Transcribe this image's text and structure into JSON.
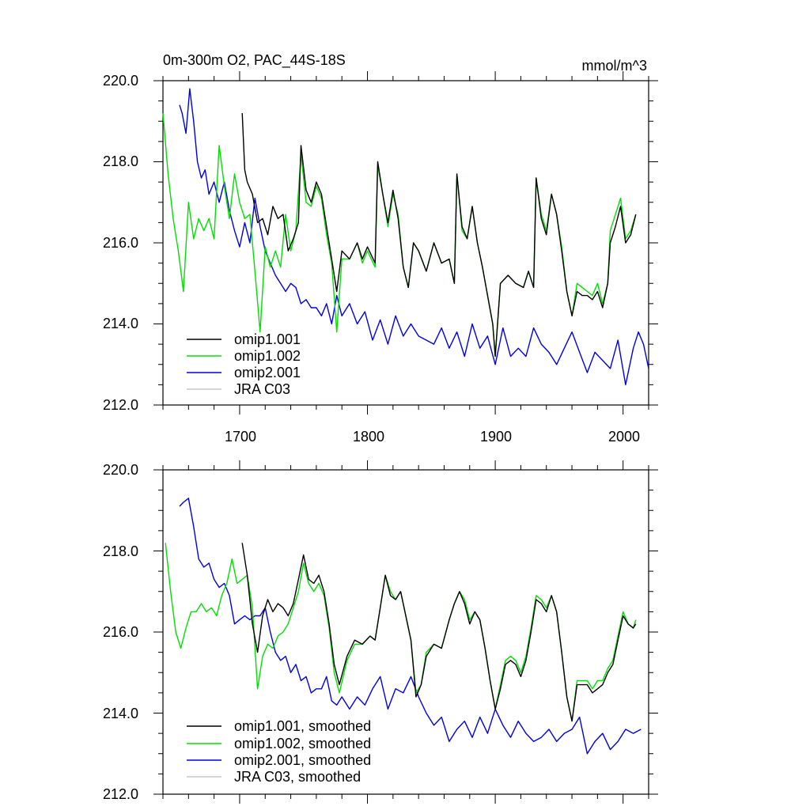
{
  "chart_data": [
    {
      "type": "line",
      "title": "0m-300m O2, PAC_44S-18S",
      "units": "mmol/m^3",
      "xlim": [
        1640,
        2020
      ],
      "ylim": [
        212,
        220
      ],
      "yticks": [
        "212.0",
        "214.0",
        "216.0",
        "218.0",
        "220.0"
      ],
      "xticks": [
        "1700",
        "1800",
        "1900",
        "2000"
      ],
      "legend_position": "bottom-left",
      "series": [
        {
          "name": "omip1.001",
          "color": "#000000",
          "x": [
            1702,
            1704,
            1706,
            1710,
            1714,
            1718,
            1722,
            1726,
            1730,
            1734,
            1738,
            1742,
            1746,
            1748,
            1752,
            1756,
            1760,
            1764,
            1768,
            1772,
            1776,
            1780,
            1786,
            1792,
            1796,
            1800,
            1806,
            1808,
            1812,
            1816,
            1820,
            1824,
            1828,
            1832,
            1836,
            1840,
            1846,
            1852,
            1858,
            1864,
            1868,
            1870,
            1874,
            1878,
            1882,
            1886,
            1890,
            1894,
            1898,
            1900,
            1904,
            1910,
            1916,
            1922,
            1926,
            1930,
            1932,
            1936,
            1940,
            1944,
            1948,
            1952,
            1956,
            1960,
            1964,
            1968,
            1972,
            1976,
            1980,
            1984,
            1988,
            1990,
            1994,
            1998,
            2002,
            2006,
            2010
          ],
          "values": [
            219.2,
            217.8,
            217.5,
            217.2,
            216.5,
            216.6,
            216.2,
            216.9,
            216.6,
            216.7,
            215.8,
            216.1,
            216.5,
            218.4,
            217.3,
            217.0,
            217.5,
            217.2,
            216.4,
            215.6,
            214.8,
            215.8,
            215.6,
            216.0,
            215.6,
            215.9,
            215.5,
            218.0,
            217.2,
            216.5,
            217.3,
            216.6,
            215.4,
            214.9,
            216.0,
            215.8,
            215.3,
            216.0,
            215.5,
            215.6,
            215.0,
            217.7,
            216.4,
            216.1,
            216.9,
            216.0,
            215.4,
            214.7,
            214.0,
            213.2,
            215.0,
            215.2,
            215.0,
            214.9,
            215.3,
            214.9,
            217.6,
            216.6,
            216.2,
            217.2,
            216.7,
            215.8,
            214.8,
            214.2,
            214.8,
            214.7,
            214.7,
            214.6,
            214.8,
            214.4,
            215.0,
            216.0,
            216.4,
            216.9,
            216.0,
            216.2,
            216.7
          ]
        },
        {
          "name": "omip1.002",
          "color": "#00e000",
          "x": [
            1640,
            1644,
            1648,
            1652,
            1656,
            1660,
            1664,
            1668,
            1672,
            1676,
            1680,
            1684,
            1688,
            1692,
            1696,
            1700,
            1704,
            1708,
            1712,
            1716,
            1720,
            1724,
            1728,
            1732,
            1736,
            1740,
            1744,
            1748,
            1752,
            1756,
            1760,
            1764,
            1768,
            1772,
            1776,
            1780,
            1786,
            1792,
            1796,
            1800,
            1806,
            1808,
            1812,
            1816,
            1820,
            1824,
            1828,
            1832,
            1836,
            1840,
            1846,
            1852,
            1858,
            1864,
            1868,
            1870,
            1874,
            1878,
            1882,
            1886,
            1890,
            1894,
            1898,
            1900,
            1904,
            1910,
            1916,
            1922,
            1926,
            1930,
            1932,
            1936,
            1940,
            1944,
            1948,
            1952,
            1956,
            1960,
            1964,
            1968,
            1972,
            1976,
            1980,
            1984,
            1988,
            1990,
            1994,
            1998,
            2002,
            2006,
            2010
          ],
          "values": [
            219.2,
            217.7,
            216.6,
            215.8,
            214.8,
            217.0,
            216.1,
            216.6,
            216.3,
            216.6,
            216.1,
            218.4,
            217.4,
            216.6,
            217.7,
            217.0,
            216.6,
            216.7,
            215.3,
            213.8,
            215.9,
            215.4,
            215.8,
            215.4,
            216.7,
            215.8,
            216.3,
            218.2,
            217.0,
            216.9,
            217.4,
            217.1,
            216.2,
            215.5,
            213.8,
            215.6,
            215.6,
            216.0,
            215.5,
            215.8,
            215.4,
            217.9,
            217.2,
            216.4,
            217.2,
            216.7,
            215.4,
            214.9,
            216.0,
            215.8,
            215.3,
            216.0,
            215.5,
            215.6,
            215.0,
            217.7,
            216.3,
            216.1,
            216.9,
            216.0,
            215.4,
            214.7,
            214.0,
            213.2,
            215.0,
            215.2,
            215.0,
            214.9,
            215.3,
            214.9,
            217.6,
            216.7,
            216.3,
            217.2,
            216.7,
            215.9,
            214.8,
            214.2,
            215.0,
            214.9,
            214.8,
            214.7,
            215.0,
            214.5,
            215.0,
            216.3,
            216.7,
            217.1,
            216.1,
            216.3,
            216.7
          ]
        },
        {
          "name": "omip2.001",
          "color": "#0000e0",
          "x": [
            1653,
            1655,
            1658,
            1661,
            1664,
            1667,
            1670,
            1673,
            1676,
            1680,
            1684,
            1688,
            1692,
            1696,
            1700,
            1704,
            1708,
            1712,
            1716,
            1720,
            1724,
            1728,
            1732,
            1736,
            1740,
            1744,
            1748,
            1752,
            1756,
            1760,
            1764,
            1768,
            1772,
            1776,
            1780,
            1786,
            1792,
            1798,
            1804,
            1810,
            1816,
            1822,
            1828,
            1834,
            1840,
            1846,
            1852,
            1858,
            1864,
            1870,
            1876,
            1882,
            1888,
            1894,
            1900,
            1906,
            1912,
            1918,
            1924,
            1930,
            1936,
            1942,
            1948,
            1954,
            1960,
            1966,
            1972,
            1978,
            1984,
            1990,
            1996,
            2002,
            2008,
            2012,
            2016,
            2020
          ],
          "values": [
            219.4,
            219.2,
            218.7,
            219.8,
            219.0,
            218.0,
            217.6,
            217.8,
            217.2,
            217.5,
            217.0,
            217.5,
            216.8,
            216.3,
            215.9,
            216.5,
            216.0,
            217.1,
            216.4,
            215.8,
            215.5,
            215.2,
            215.0,
            214.8,
            215.0,
            214.9,
            214.5,
            214.6,
            214.4,
            214.4,
            214.2,
            214.5,
            214.0,
            214.7,
            214.2,
            214.5,
            214.0,
            214.3,
            213.6,
            214.1,
            213.5,
            214.2,
            213.7,
            214.0,
            213.7,
            213.6,
            213.5,
            213.9,
            213.4,
            213.8,
            213.2,
            214.0,
            213.4,
            213.7,
            213.0,
            213.9,
            213.2,
            213.4,
            213.2,
            213.9,
            213.5,
            213.3,
            213.0,
            213.4,
            213.8,
            213.3,
            212.8,
            213.3,
            213.1,
            212.9,
            213.6,
            212.5,
            213.4,
            213.8,
            213.5,
            212.9
          ]
        },
        {
          "name": "JRA C03",
          "color": "#c8c8c8",
          "x": [],
          "values": []
        }
      ]
    },
    {
      "type": "line",
      "title": "",
      "xlim": [
        1640,
        2020
      ],
      "ylim": [
        212,
        220
      ],
      "yticks": [
        "212.0",
        "214.0",
        "216.0",
        "218.0",
        "220.0"
      ],
      "xticks": [],
      "legend_position": "bottom-left",
      "series": [
        {
          "name": "omip1.001, smoothed",
          "color": "#000000",
          "x": [
            1702,
            1706,
            1710,
            1714,
            1718,
            1722,
            1726,
            1730,
            1734,
            1738,
            1742,
            1746,
            1750,
            1754,
            1758,
            1762,
            1766,
            1770,
            1774,
            1778,
            1784,
            1790,
            1796,
            1802,
            1806,
            1810,
            1814,
            1818,
            1822,
            1826,
            1830,
            1834,
            1838,
            1842,
            1846,
            1852,
            1858,
            1864,
            1868,
            1872,
            1876,
            1880,
            1884,
            1888,
            1892,
            1896,
            1900,
            1904,
            1908,
            1912,
            1916,
            1920,
            1924,
            1928,
            1932,
            1936,
            1940,
            1944,
            1948,
            1952,
            1956,
            1960,
            1964,
            1968,
            1972,
            1976,
            1980,
            1984,
            1988,
            1992,
            1996,
            2000,
            2004,
            2008,
            2010
          ],
          "values": [
            218.2,
            217.4,
            216.2,
            215.5,
            216.4,
            216.8,
            216.5,
            216.7,
            216.6,
            216.4,
            216.7,
            217.3,
            217.9,
            217.3,
            217.2,
            217.4,
            217.0,
            216.2,
            215.2,
            214.7,
            215.4,
            215.8,
            215.7,
            215.9,
            215.8,
            216.6,
            217.4,
            216.9,
            216.8,
            217.0,
            216.4,
            215.8,
            214.4,
            214.7,
            215.4,
            215.7,
            215.6,
            216.3,
            216.7,
            217.0,
            216.7,
            216.2,
            216.5,
            216.3,
            215.6,
            214.8,
            214.1,
            214.6,
            215.2,
            215.3,
            215.2,
            214.9,
            215.3,
            216.0,
            216.8,
            216.7,
            216.5,
            216.9,
            216.5,
            215.5,
            214.4,
            213.8,
            214.7,
            214.7,
            214.7,
            214.5,
            214.6,
            214.7,
            215.0,
            215.2,
            215.8,
            216.4,
            216.2,
            216.1,
            216.2
          ]
        },
        {
          "name": "omip1.002, smoothed",
          "color": "#00e000",
          "x": [
            1642,
            1646,
            1650,
            1654,
            1658,
            1662,
            1666,
            1670,
            1674,
            1678,
            1682,
            1686,
            1690,
            1694,
            1698,
            1702,
            1706,
            1710,
            1714,
            1718,
            1722,
            1726,
            1730,
            1734,
            1738,
            1742,
            1746,
            1750,
            1754,
            1758,
            1762,
            1766,
            1770,
            1774,
            1778,
            1784,
            1790,
            1796,
            1802,
            1806,
            1810,
            1814,
            1818,
            1822,
            1826,
            1830,
            1834,
            1838,
            1842,
            1846,
            1852,
            1858,
            1864,
            1868,
            1872,
            1876,
            1880,
            1884,
            1888,
            1892,
            1896,
            1900,
            1904,
            1908,
            1912,
            1916,
            1920,
            1924,
            1928,
            1932,
            1936,
            1940,
            1944,
            1948,
            1952,
            1956,
            1960,
            1964,
            1968,
            1972,
            1976,
            1980,
            1984,
            1988,
            1992,
            1996,
            2000,
            2004,
            2008,
            2010
          ],
          "values": [
            218.2,
            217.0,
            216.0,
            215.6,
            216.1,
            216.5,
            216.5,
            216.7,
            216.5,
            216.6,
            216.4,
            216.9,
            217.2,
            217.8,
            217.2,
            217.3,
            217.4,
            216.6,
            214.6,
            215.4,
            215.7,
            215.6,
            215.9,
            216.0,
            216.2,
            216.6,
            217.0,
            217.7,
            217.2,
            217.0,
            217.2,
            216.9,
            216.1,
            215.0,
            214.5,
            215.3,
            215.7,
            215.7,
            215.9,
            215.8,
            216.6,
            217.4,
            217.0,
            216.8,
            217.0,
            216.4,
            215.8,
            214.5,
            214.7,
            215.5,
            215.7,
            215.6,
            216.3,
            216.7,
            217.0,
            216.8,
            216.3,
            216.5,
            216.3,
            215.6,
            214.8,
            214.1,
            214.7,
            215.3,
            215.4,
            215.3,
            215.0,
            215.4,
            216.1,
            216.9,
            216.8,
            216.6,
            216.9,
            216.5,
            215.5,
            214.4,
            213.8,
            214.8,
            214.8,
            214.8,
            214.6,
            214.8,
            214.8,
            215.1,
            215.3,
            215.9,
            216.5,
            216.2,
            216.1,
            216.3
          ]
        },
        {
          "name": "omip2.001, smoothed",
          "color": "#0000e0",
          "x": [
            1653,
            1656,
            1660,
            1664,
            1668,
            1672,
            1676,
            1680,
            1684,
            1688,
            1692,
            1696,
            1700,
            1704,
            1708,
            1712,
            1716,
            1720,
            1724,
            1728,
            1732,
            1736,
            1740,
            1744,
            1748,
            1752,
            1756,
            1760,
            1764,
            1768,
            1772,
            1776,
            1780,
            1786,
            1792,
            1798,
            1804,
            1810,
            1816,
            1822,
            1828,
            1834,
            1840,
            1846,
            1852,
            1858,
            1864,
            1870,
            1876,
            1882,
            1888,
            1894,
            1900,
            1906,
            1912,
            1918,
            1924,
            1930,
            1936,
            1942,
            1948,
            1954,
            1960,
            1966,
            1972,
            1978,
            1984,
            1990,
            1996,
            2002,
            2008,
            2014
          ],
          "values": [
            219.1,
            219.2,
            219.3,
            218.6,
            217.8,
            217.6,
            217.7,
            217.3,
            217.1,
            217.2,
            216.9,
            216.2,
            216.3,
            216.4,
            216.3,
            216.4,
            216.4,
            216.6,
            216.0,
            215.5,
            215.3,
            215.4,
            215.0,
            215.2,
            214.8,
            214.9,
            214.5,
            214.6,
            214.6,
            214.9,
            214.3,
            214.2,
            214.4,
            214.1,
            214.4,
            214.2,
            214.6,
            214.9,
            214.1,
            214.6,
            214.5,
            214.9,
            214.4,
            214.0,
            213.7,
            213.9,
            213.3,
            213.6,
            213.8,
            213.4,
            213.9,
            213.5,
            214.1,
            213.7,
            213.4,
            213.8,
            213.5,
            213.3,
            213.4,
            213.6,
            213.3,
            213.5,
            213.6,
            213.9,
            213.0,
            213.3,
            213.5,
            213.1,
            213.3,
            213.6,
            213.5,
            213.6
          ]
        },
        {
          "name": "JRA C03, smoothed",
          "color": "#c8c8c8",
          "x": [],
          "values": []
        }
      ]
    }
  ]
}
